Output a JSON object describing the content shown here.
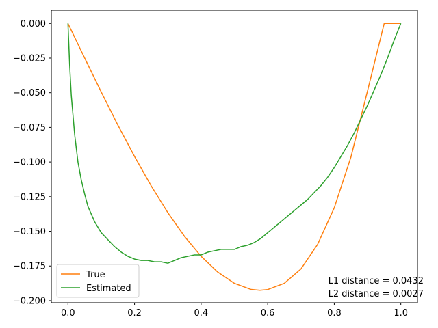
{
  "chart_data": {
    "type": "line",
    "xlim": [
      -0.05,
      1.05
    ],
    "ylim": [
      -0.2015,
      0.0095
    ],
    "x_ticks": [
      0.0,
      0.2,
      0.4,
      0.6,
      0.8,
      1.0
    ],
    "x_tick_labels": [
      "0.0",
      "0.2",
      "0.4",
      "0.6",
      "0.8",
      "1.0"
    ],
    "y_ticks": [
      0.0,
      -0.025,
      -0.05,
      -0.075,
      -0.1,
      -0.125,
      -0.15,
      -0.175,
      -0.2
    ],
    "y_tick_labels": [
      "0.000",
      "−0.025",
      "−0.050",
      "−0.075",
      "−0.100",
      "−0.125",
      "−0.150",
      "−0.175",
      "−0.200"
    ],
    "grid": false,
    "legend_position": "lower-left",
    "series": [
      {
        "name": "True",
        "color": "#ff7f0e",
        "x": [
          0.0,
          0.05,
          0.1,
          0.15,
          0.2,
          0.25,
          0.3,
          0.35,
          0.4,
          0.45,
          0.5,
          0.55,
          0.577,
          0.6,
          0.65,
          0.7,
          0.75,
          0.8,
          0.85,
          0.9,
          0.95,
          1.0
        ],
        "y": [
          0.0,
          -0.0249,
          -0.0495,
          -0.0734,
          -0.096,
          -0.1172,
          -0.1365,
          -0.1536,
          -0.168,
          -0.1794,
          -0.1875,
          -0.1919,
          -0.1925,
          -0.192,
          -0.1875,
          -0.1771,
          -0.1594,
          -0.133,
          -0.0965,
          -0.0486,
          0.0,
          0.0
        ],
        "note": ""
      },
      {
        "name": "Estimated",
        "color": "#2ca02c",
        "x": [
          0.0,
          0.005,
          0.01,
          0.02,
          0.03,
          0.04,
          0.05,
          0.06,
          0.08,
          0.1,
          0.12,
          0.14,
          0.16,
          0.18,
          0.2,
          0.22,
          0.24,
          0.26,
          0.28,
          0.3,
          0.32,
          0.34,
          0.36,
          0.38,
          0.4,
          0.42,
          0.44,
          0.46,
          0.48,
          0.5,
          0.52,
          0.54,
          0.56,
          0.58,
          0.6,
          0.62,
          0.64,
          0.66,
          0.68,
          0.7,
          0.72,
          0.74,
          0.76,
          0.78,
          0.8,
          0.82,
          0.84,
          0.86,
          0.88,
          0.9,
          0.92,
          0.94,
          0.96,
          0.98,
          1.0
        ],
        "y": [
          0.0,
          -0.03,
          -0.052,
          -0.08,
          -0.1,
          -0.113,
          -0.123,
          -0.132,
          -0.143,
          -0.151,
          -0.156,
          -0.161,
          -0.165,
          -0.168,
          -0.17,
          -0.171,
          -0.171,
          -0.172,
          -0.172,
          -0.173,
          -0.171,
          -0.169,
          -0.168,
          -0.167,
          -0.167,
          -0.165,
          -0.164,
          -0.163,
          -0.163,
          -0.163,
          -0.161,
          -0.16,
          -0.158,
          -0.155,
          -0.151,
          -0.147,
          -0.143,
          -0.139,
          -0.135,
          -0.131,
          -0.127,
          -0.122,
          -0.117,
          -0.111,
          -0.104,
          -0.096,
          -0.088,
          -0.079,
          -0.069,
          -0.059,
          -0.048,
          -0.037,
          -0.025,
          -0.012,
          0.0
        ]
      }
    ],
    "annotations": [
      "L1 distance = 0.0432",
      "L2 distance = 0.0027"
    ]
  }
}
